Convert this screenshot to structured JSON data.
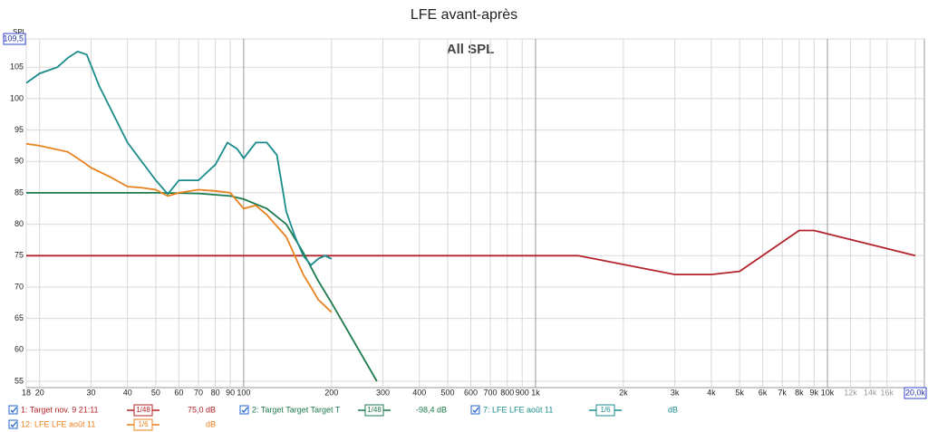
{
  "chart_data": {
    "type": "line",
    "title": "LFE avant-après",
    "subtitle": "All SPL",
    "y_label": "SPL",
    "log_x": true,
    "grid": true,
    "xlim": [
      18,
      20000
    ],
    "ylim": [
      55,
      109.5
    ],
    "yticks": [
      55,
      60,
      65,
      70,
      75,
      80,
      85,
      90,
      95,
      100,
      105,
      {
        "value": 109.5,
        "label": "109,5"
      }
    ],
    "xticks": [
      18,
      20,
      30,
      40,
      50,
      60,
      70,
      80,
      90,
      100,
      200,
      300,
      400,
      500,
      600,
      700,
      800,
      900,
      {
        "value": 1000,
        "label": "1k"
      },
      {
        "value": 2000,
        "label": "2k"
      },
      {
        "value": 3000,
        "label": "3k"
      },
      {
        "value": 4000,
        "label": "4k"
      },
      {
        "value": 5000,
        "label": "5k"
      },
      {
        "value": 6000,
        "label": "6k"
      },
      {
        "value": 7000,
        "label": "7k"
      },
      {
        "value": 8000,
        "label": "8k"
      },
      {
        "value": 9000,
        "label": "9k"
      },
      {
        "value": 10000,
        "label": "10k"
      },
      {
        "value": 12000,
        "label": "12k"
      },
      {
        "value": 14000,
        "label": "14k"
      },
      {
        "value": 16000,
        "label": "16k"
      },
      {
        "value": 20000,
        "label": "20,0k"
      }
    ],
    "series": [
      {
        "name": "1: Target nov. 9 21:11",
        "color": "#b3232a",
        "smoothing": "1/48",
        "offset": "75,0 dB",
        "x": [
          18,
          1400,
          3000,
          4000,
          5000,
          8000,
          9000,
          20000
        ],
        "values": [
          75,
          75,
          72,
          72,
          72.5,
          79,
          79,
          75
        ]
      },
      {
        "name": "2: Target Target Target T",
        "color": "#1d7a4c",
        "smoothing": "1/48",
        "offset": "-98,4 dB",
        "x": [
          18,
          50,
          70,
          90,
          100,
          120,
          140,
          160,
          180,
          200,
          286
        ],
        "values": [
          85,
          85,
          84.9,
          84.5,
          84,
          82.5,
          80,
          75.5,
          71,
          67.5,
          55
        ]
      },
      {
        "name": "7: LFE LFE août 11",
        "color": "#1a8c8c",
        "smoothing": "1/6",
        "offset": "dB",
        "x": [
          18,
          20,
          23,
          25,
          27,
          29,
          32,
          40,
          50,
          55,
          60,
          65,
          70,
          80,
          88,
          95,
          100,
          110,
          120,
          130,
          140,
          150,
          160,
          170,
          180,
          190,
          200
        ],
        "values": [
          102.5,
          104,
          105,
          106.5,
          107.5,
          107,
          102,
          93,
          87,
          84.8,
          87,
          87,
          87,
          89.5,
          93,
          92,
          90.5,
          93,
          93,
          91,
          82,
          78,
          75,
          73.5,
          74.5,
          75,
          74.5
        ]
      },
      {
        "name": "12: LFE LFE août 11",
        "color": "#e8821e",
        "smoothing": "1/6",
        "offset": "dB",
        "x": [
          18,
          20,
          25,
          28,
          30,
          35,
          40,
          45,
          50,
          55,
          60,
          70,
          80,
          90,
          100,
          110,
          120,
          140,
          160,
          170,
          180,
          200
        ],
        "values": [
          92.8,
          92.5,
          91.5,
          90,
          89,
          87.5,
          86,
          85.8,
          85.5,
          84.5,
          85,
          85.5,
          85.3,
          85,
          82.5,
          83,
          81.5,
          78,
          72,
          70,
          68,
          66
        ]
      }
    ]
  }
}
